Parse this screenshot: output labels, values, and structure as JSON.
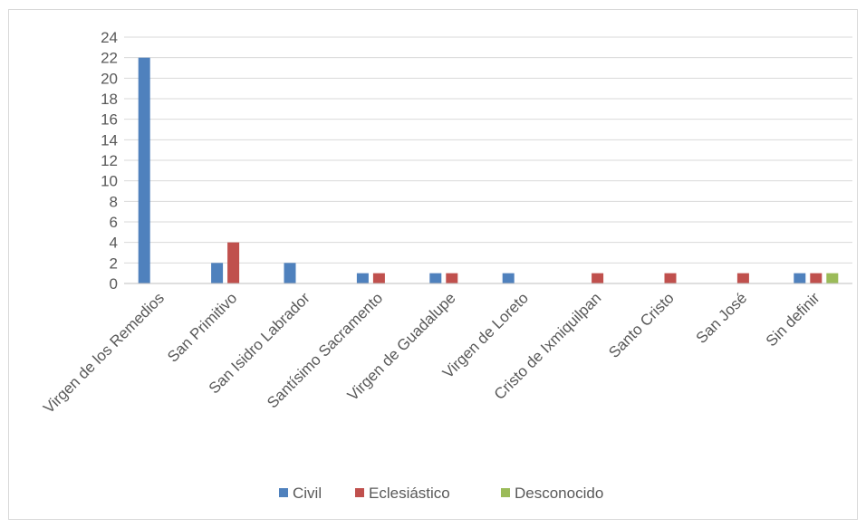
{
  "chart_data": {
    "type": "bar",
    "title": "",
    "xlabel": "",
    "ylabel": "",
    "ylim": [
      0,
      24
    ],
    "yticks": [
      0,
      2,
      4,
      6,
      8,
      10,
      12,
      14,
      16,
      18,
      20,
      22,
      24
    ],
    "grid": true,
    "legend_position": "bottom",
    "categories": [
      "Virgen de los Remedios",
      "San Primitivo",
      "San Isidro Labrador",
      "Santísimo Sacramento",
      "Virgen de Guadalupe",
      "Virgen de Loreto",
      "Cristo de Ixmiquilpan",
      "Santo Cristo",
      "San José",
      "Sin definir"
    ],
    "series": [
      {
        "name": "Civil",
        "color": "#4f81bd",
        "values": [
          22,
          2,
          2,
          1,
          1,
          1,
          0,
          0,
          0,
          1
        ]
      },
      {
        "name": "Eclesiástico",
        "color": "#c0504d",
        "values": [
          0,
          4,
          0,
          1,
          1,
          0,
          1,
          1,
          1,
          1
        ]
      },
      {
        "name": "Desconocido",
        "color": "#9bbb59",
        "values": [
          0,
          0,
          0,
          0,
          0,
          0,
          0,
          0,
          0,
          1
        ]
      }
    ]
  }
}
